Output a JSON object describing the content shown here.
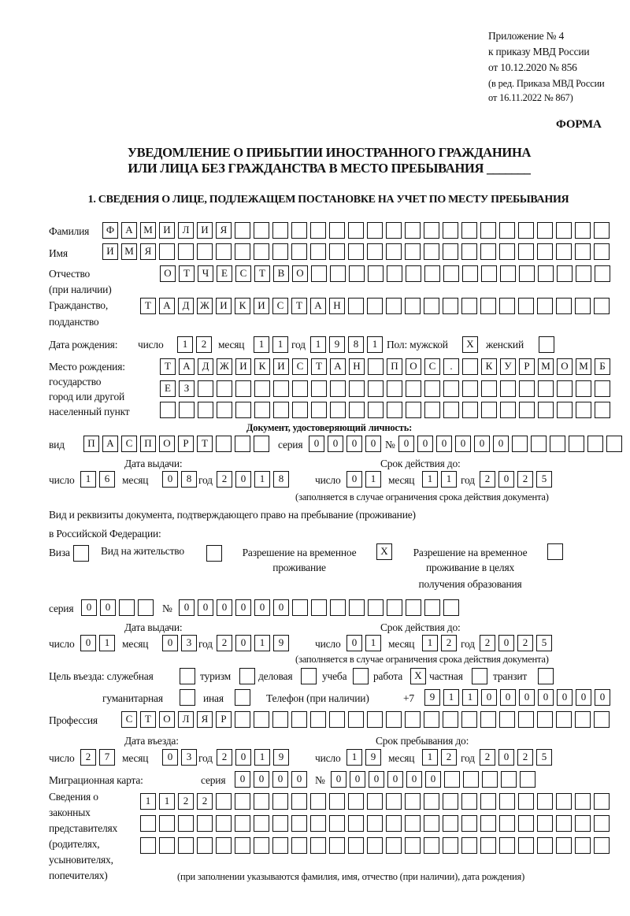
{
  "header": {
    "appendix_line1": "Приложение № 4",
    "appendix_line2": "к приказу МВД России",
    "appendix_line3": "от 10.12.2020 № 856",
    "amend_line1": "(в ред. Приказа МВД России",
    "amend_line2": "от 16.11.2022 № 867)",
    "form_label": "ФОРМА",
    "title_line1": "УВЕДОМЛЕНИЕ О ПРИБЫТИИ ИНОСТРАННОГО ГРАЖДАНИНА",
    "title_line2": "ИЛИ ЛИЦА БЕЗ ГРАЖДАНСТВА В МЕСТО ПРЕБЫВАНИЯ _______",
    "section1": "1. СВЕДЕНИЯ О ЛИЦЕ, ПОДЛЕЖАЩЕМ ПОСТАНОВКЕ НА УЧЕТ ПО МЕСТУ ПРЕБЫВАНИЯ"
  },
  "labels": {
    "surname": "Фамилия",
    "name": "Имя",
    "patronymic1": "Отчество",
    "patronymic2": "(при наличии)",
    "citizenship1": "Гражданство,",
    "citizenship2": "подданство",
    "birth_date": "Дата рождения:",
    "day": "число",
    "month": "месяц",
    "year": "год",
    "sex": "Пол: мужской",
    "female": "женский",
    "birthplace1": "Место рождения:",
    "birthplace2": "государство",
    "birthplace3": "город или другой",
    "birthplace4": "населенный пункт",
    "id_doc": "Документ, удостоверяющий личность:",
    "kind": "вид",
    "series": "серия",
    "number": "№",
    "issue_date": "Дата выдачи:",
    "valid_until": "Срок действия до:",
    "validity_note": "(заполняется в случае ограничения срока действия документа)",
    "stay_doc1": "Вид и реквизиты документа, подтверждающего право на пребывание (проживание)",
    "stay_doc2": "в Российской Федерации:",
    "visa": "Виза",
    "residence": "Вид на жительство",
    "temp_res1": "Разрешение на временное",
    "temp_res2": "проживание",
    "temp_edu1": "Разрешение на временное",
    "temp_edu2": "проживание в целях",
    "temp_edu3": "получения образования",
    "purpose": "Цель въезда: служебная",
    "tourism": "туризм",
    "business": "деловая",
    "study": "учеба",
    "work": "работа",
    "private": "частная",
    "transit": "транзит",
    "humanitarian": "гуманитарная",
    "other": "иная",
    "phone": "Телефон (при наличии)",
    "phone_prefix": "+7",
    "profession": "Профессия",
    "entry_date": "Дата въезда:",
    "stay_until": "Срок пребывания до:",
    "migration_card": "Миграционная карта:",
    "reps1": "Сведения о",
    "reps2": "законных",
    "reps3": "представителях",
    "reps4": "(родителях,",
    "reps5": "усыновителях,",
    "reps6": "попечителях)",
    "reps_note": "(при заполнении указываются фамилия, имя, отчество (при наличии), дата рождения)"
  },
  "values": {
    "surname": "ФАМИЛИЯ",
    "name": "ИМЯ",
    "patronymic": "ОТЧЕСТВО",
    "citizenship": "ТАДЖИКИСТАН",
    "birth_day": "12",
    "birth_month": "11",
    "birth_year": "1981",
    "sex_male": "X",
    "sex_female": "",
    "birthplace_row1": "ТАДЖИКИСТАН ПОС. КУРМОМБ",
    "birthplace_row2": "ЕЗ",
    "birthplace_row3": "",
    "id_kind": "ПАСПОРТ",
    "id_series": "0000",
    "id_number": "000000",
    "id_issue_day": "16",
    "id_issue_month": "08",
    "id_issue_year": "2018",
    "id_valid_day": "01",
    "id_valid_month": "11",
    "id_valid_year": "2025",
    "visa": "",
    "residence": "",
    "temp_res": "X",
    "temp_edu": "",
    "stay_series": "00",
    "stay_number": "000000",
    "stay_issue_day": "01",
    "stay_issue_month": "03",
    "stay_issue_year": "2019",
    "stay_valid_day": "01",
    "stay_valid_month": "12",
    "stay_valid_year": "2025",
    "p_service": "",
    "p_tourism": "",
    "p_business": "",
    "p_study": "",
    "p_work": "X",
    "p_private": "",
    "p_transit": "",
    "p_humanitarian": "",
    "p_other": "",
    "phone": "9110000000",
    "profession": "СТОЛЯР",
    "entry_day": "27",
    "entry_month": "03",
    "entry_year": "2019",
    "stay_until_day": "19",
    "stay_until_month": "12",
    "stay_until_year": "2025",
    "mc_series": "0000",
    "mc_number": "000000",
    "reps_row1": "1122",
    "reps_row2": "",
    "reps_row3": ""
  }
}
